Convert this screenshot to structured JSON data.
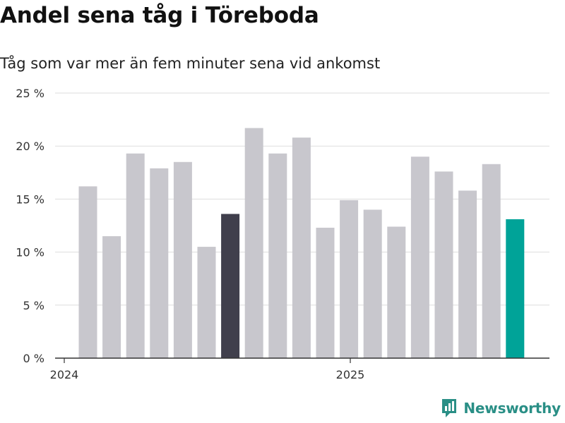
{
  "header": {
    "title": "Andel sena tåg i Töreboda",
    "subtitle": "Tåg som var mer än fem minuter sena vid ankomst"
  },
  "brand": {
    "name": "Newsworthy"
  },
  "colors": {
    "bar_default": "#c8c7cd",
    "bar_dark": "#403f4c",
    "bar_highlight": "#00a398",
    "grid": "#dddddd",
    "axis": "#333333",
    "brand": "#2a8f86"
  },
  "chart_data": {
    "type": "bar",
    "title": "Andel sena tåg i Töreboda",
    "subtitle": "Tåg som var mer än fem minuter sena vid ankomst",
    "x_tick_labels": [
      "2024",
      "2025"
    ],
    "y_ticks": [
      0,
      5,
      10,
      15,
      20,
      25
    ],
    "y_tick_labels": [
      "0 %",
      "5 %",
      "10 %",
      "15 %",
      "20 %",
      "25 %"
    ],
    "ylim": [
      0,
      25
    ],
    "grid": true,
    "values": [
      16.2,
      11.5,
      19.3,
      17.9,
      18.5,
      10.5,
      13.6,
      21.7,
      19.3,
      20.8,
      12.3,
      14.9,
      14.0,
      12.4,
      19.0,
      17.6,
      15.8,
      18.3,
      13.1
    ],
    "bar_style": [
      "default",
      "default",
      "default",
      "default",
      "default",
      "default",
      "dark",
      "default",
      "default",
      "default",
      "default",
      "default",
      "default",
      "default",
      "default",
      "default",
      "default",
      "default",
      "highlight"
    ]
  }
}
